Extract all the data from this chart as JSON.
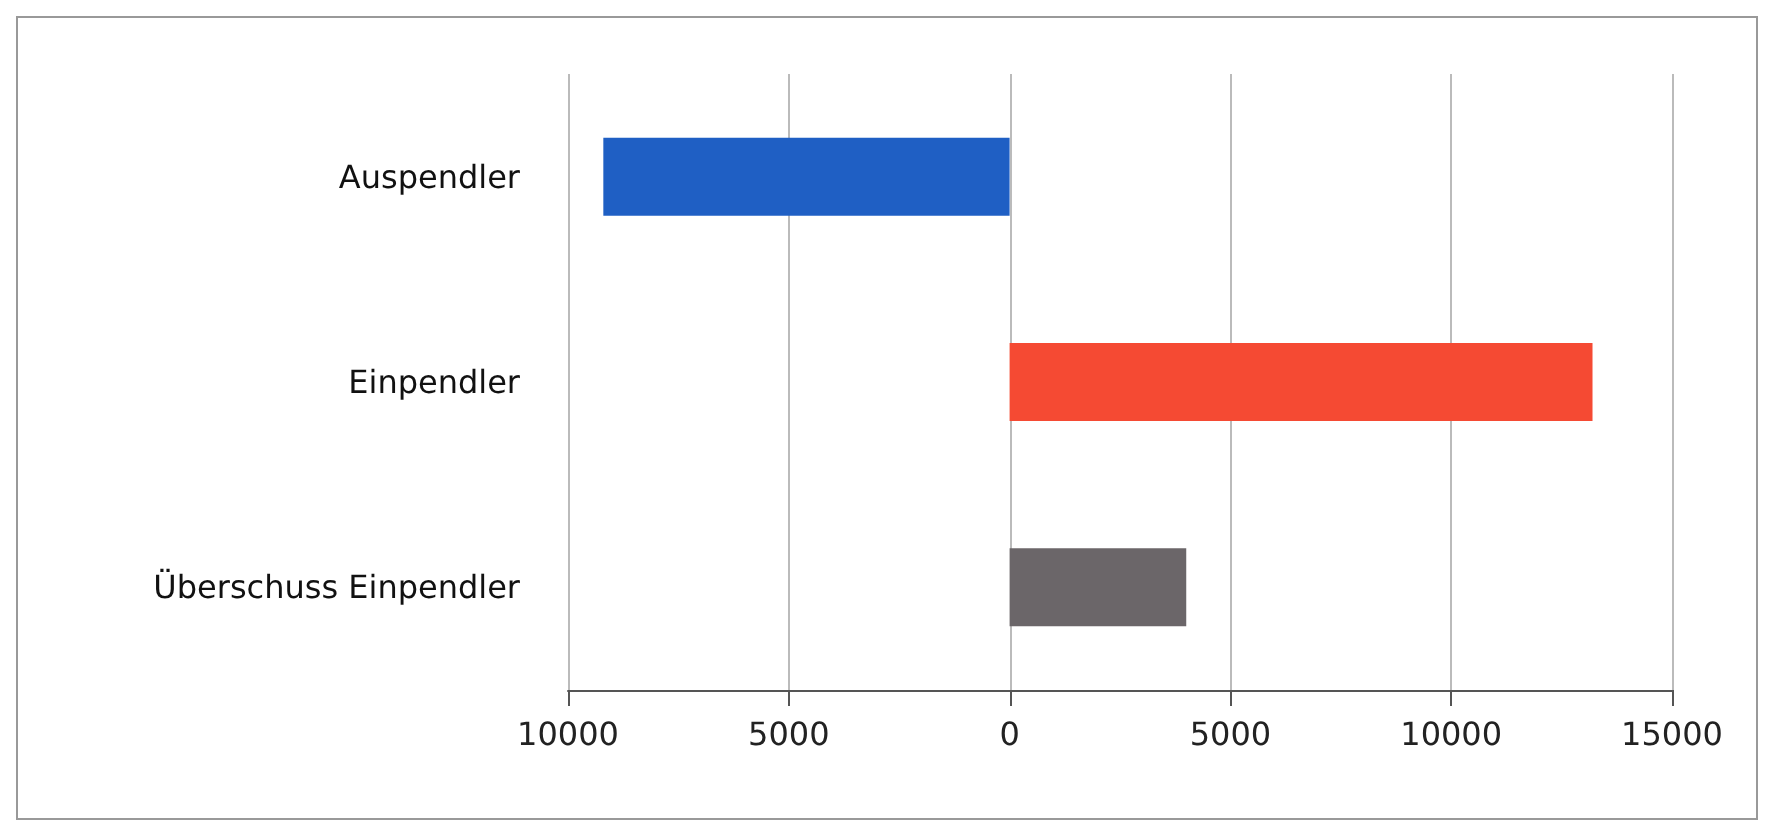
{
  "chart_data": {
    "type": "bar",
    "orientation": "horizontal",
    "categories": [
      "Auspendler",
      "Einpendler",
      "Überschuss Einpendler"
    ],
    "values": [
      -9200,
      13200,
      4000
    ],
    "colors": [
      "#1f5fc4",
      "#f54a33",
      "#6b6669"
    ],
    "xlim": [
      -10000,
      15000
    ],
    "xticks": [
      {
        "value": -10000,
        "label": "10000"
      },
      {
        "value": -5000,
        "label": "5000"
      },
      0,
      5000,
      10000,
      15000
    ],
    "grid": "x"
  }
}
